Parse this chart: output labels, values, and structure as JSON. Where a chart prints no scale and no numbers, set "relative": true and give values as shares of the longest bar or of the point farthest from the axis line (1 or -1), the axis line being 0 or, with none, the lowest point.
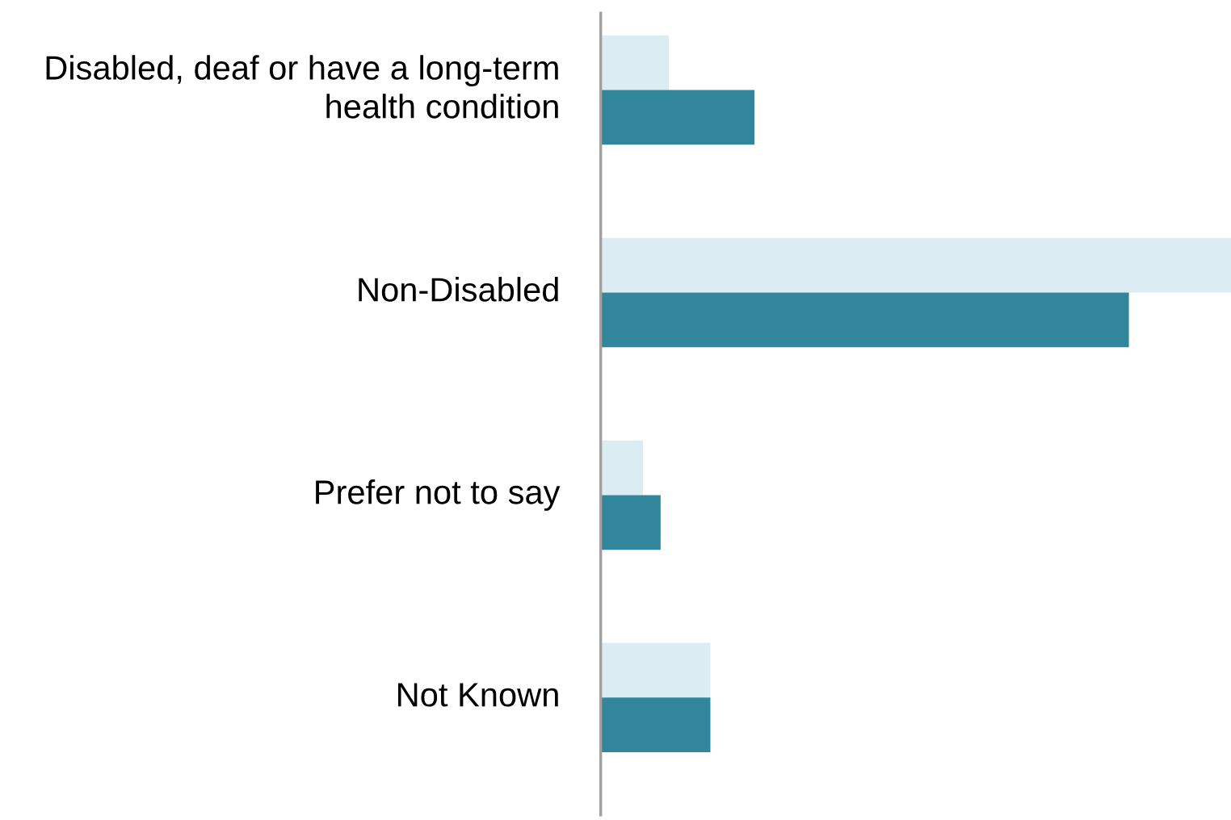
{
  "chart_data": {
    "type": "bar",
    "orientation": "horizontal",
    "relative": true,
    "categories": [
      "Disabled, deaf or have a long-term health condition",
      "Non-Disabled",
      "Prefer not to say",
      "Not Known"
    ],
    "series": [
      {
        "color": "#dbedf3",
        "values": [
          0.108,
          1,
          0.067,
          0.174
        ]
      },
      {
        "color": "#31869b",
        "values": [
          0.244,
          0.838,
          0.095,
          0.174
        ]
      }
    ],
    "legend": false
  }
}
